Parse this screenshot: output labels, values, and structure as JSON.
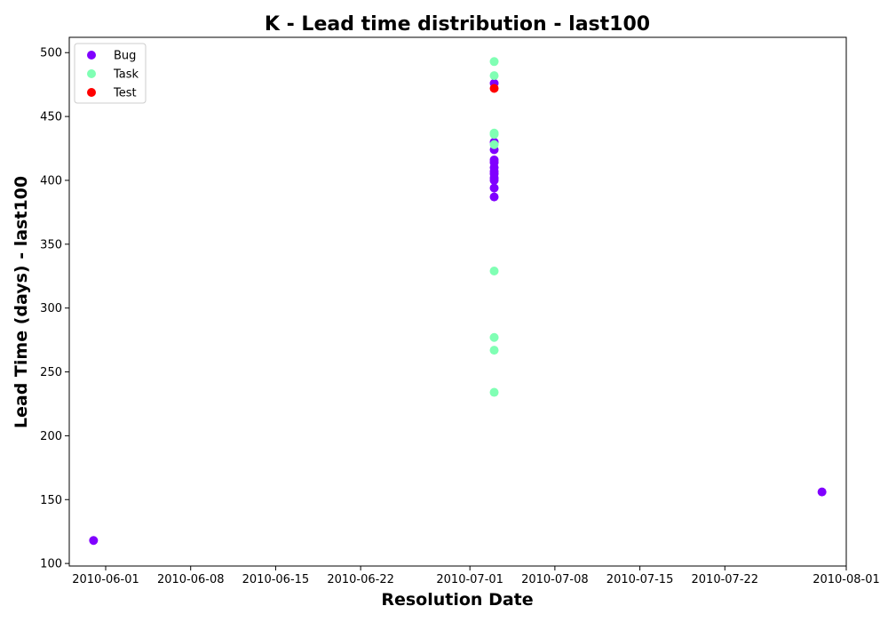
{
  "chart_data": {
    "type": "scatter",
    "title": "K - Lead time distribution - last100",
    "xlabel": "Resolution Date",
    "ylabel": "Lead Time (days) - last100",
    "x_ticks": [
      "2010-06-01",
      "2010-06-08",
      "2010-06-15",
      "2010-06-22",
      "2010-07-01",
      "2010-07-08",
      "2010-07-15",
      "2010-07-22",
      "2010-08-01"
    ],
    "y_ticks": [
      100,
      150,
      200,
      250,
      300,
      350,
      400,
      450,
      500
    ],
    "xlim": [
      "2010-05-29",
      "2010-08-01"
    ],
    "ylim": [
      98,
      512
    ],
    "grid": false,
    "legend_position": "top-left",
    "series": [
      {
        "name": "Bug",
        "color": "#8000ff",
        "points": [
          {
            "x": "2010-05-31",
            "y": 118
          },
          {
            "x": "2010-07-03",
            "y": 476
          },
          {
            "x": "2010-07-03",
            "y": 430
          },
          {
            "x": "2010-07-03",
            "y": 424
          },
          {
            "x": "2010-07-03",
            "y": 416
          },
          {
            "x": "2010-07-03",
            "y": 414
          },
          {
            "x": "2010-07-03",
            "y": 410
          },
          {
            "x": "2010-07-03",
            "y": 407
          },
          {
            "x": "2010-07-03",
            "y": 405
          },
          {
            "x": "2010-07-03",
            "y": 402
          },
          {
            "x": "2010-07-03",
            "y": 400
          },
          {
            "x": "2010-07-03",
            "y": 394
          },
          {
            "x": "2010-07-03",
            "y": 387
          },
          {
            "x": "2010-07-30",
            "y": 156
          }
        ]
      },
      {
        "name": "Task",
        "color": "#80ffb4",
        "points": [
          {
            "x": "2010-07-03",
            "y": 493
          },
          {
            "x": "2010-07-03",
            "y": 482
          },
          {
            "x": "2010-07-03",
            "y": 437
          },
          {
            "x": "2010-07-03",
            "y": 436
          },
          {
            "x": "2010-07-03",
            "y": 428
          },
          {
            "x": "2010-07-03",
            "y": 329
          },
          {
            "x": "2010-07-03",
            "y": 277
          },
          {
            "x": "2010-07-03",
            "y": 267
          },
          {
            "x": "2010-07-03",
            "y": 234
          }
        ]
      },
      {
        "name": "Test",
        "color": "#ff0000",
        "points": [
          {
            "x": "2010-07-03",
            "y": 472
          }
        ]
      }
    ]
  }
}
